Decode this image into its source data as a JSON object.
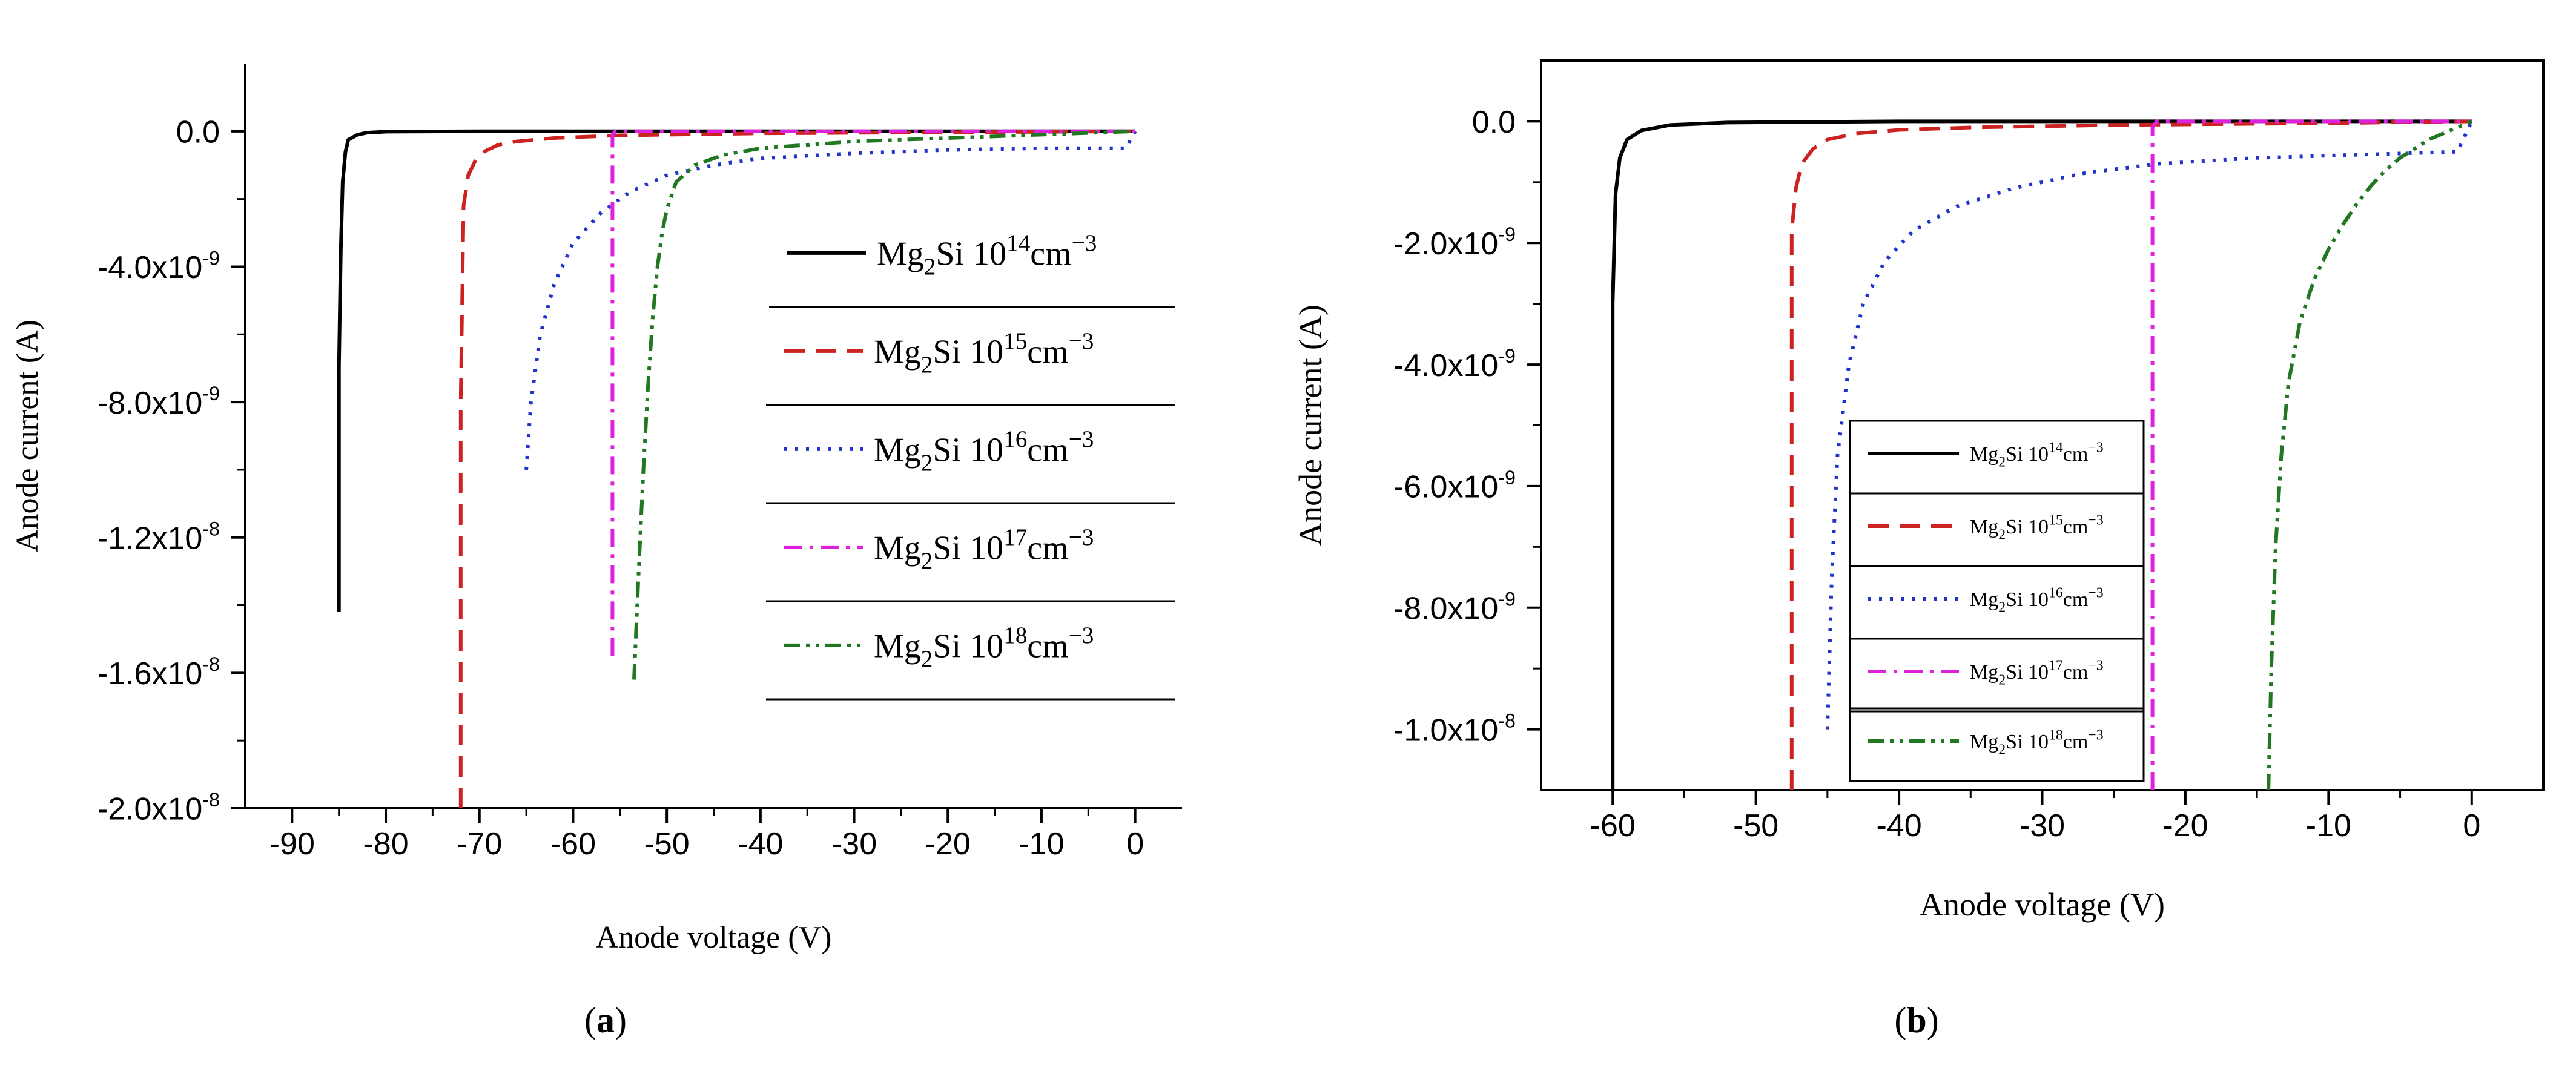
{
  "chart_data": [
    {
      "id": "a",
      "type": "line",
      "caption": "a",
      "xlabel": "Anode voltage (V)",
      "ylabel": "Anode current (A)",
      "xlim": [
        -95,
        5
      ],
      "ylim": [
        -2e-08,
        2e-09
      ],
      "xticks": [
        -90,
        -80,
        -70,
        -60,
        -50,
        -40,
        -30,
        -20,
        -10,
        0
      ],
      "xtick_labels": [
        "-90",
        "-80",
        "-70",
        "-60",
        "-50",
        "-40",
        "-30",
        "-20",
        "-10",
        "0"
      ],
      "yticks": [
        0,
        -4e-09,
        -8e-09,
        -1.2e-08,
        -1.6e-08,
        -2e-08
      ],
      "ytick_labels": [
        "0.0",
        "-4.0x10",
        "-8.0x10",
        "-1.2x10",
        "-1.6x10",
        "-2.0x10"
      ],
      "ytick_exps": [
        "",
        "-9",
        "-9",
        "-8",
        "-8",
        "-8"
      ],
      "legend_position": "right",
      "series": [
        {
          "name": "Mg2Si 10^14 cm^-3",
          "legend": {
            "base": "Mg",
            "sub": "2",
            "mid": "Si 10",
            "sup": "14",
            "unit": "cm",
            "usup": "−3"
          },
          "color": "#000000",
          "dash": "solid",
          "x": [
            -85,
            -85,
            -84.8,
            -84.6,
            -84.3,
            -84.0,
            -83.0,
            -82.0,
            -80.0,
            -70,
            -50,
            -30,
            0
          ],
          "y": [
            -1.42e-08,
            -7e-09,
            -3.5e-09,
            -1.5e-09,
            -6e-10,
            -2.5e-10,
            -1e-10,
            -4e-11,
            -1e-11,
            0,
            0,
            0,
            0
          ]
        },
        {
          "name": "Mg2Si 10^15 cm^-3",
          "legend": {
            "base": "Mg",
            "sub": "2",
            "mid": "Si 10",
            "sup": "15",
            "unit": "cm",
            "usup": "−3"
          },
          "color": "#cc2222",
          "dash": "dashed",
          "x": [
            -72,
            -72,
            -71.7,
            -71.2,
            -70.5,
            -69.5,
            -68,
            -66,
            -62,
            -55,
            -40,
            -20,
            0
          ],
          "y": [
            -2e-08,
            -8e-09,
            -2.2e-09,
            -1.3e-09,
            -9e-10,
            -6e-10,
            -4e-10,
            -3e-10,
            -2e-10,
            -1.2e-10,
            -6e-11,
            -3e-11,
            0
          ]
        },
        {
          "name": "Mg2Si 10^16 cm^-3",
          "legend": {
            "base": "Mg",
            "sub": "2",
            "mid": "Si 10",
            "sup": "16",
            "unit": "cm",
            "usup": "−3"
          },
          "color": "#2233cc",
          "dash": "dotted",
          "x": [
            -65,
            -64.5,
            -63.5,
            -62,
            -60,
            -57,
            -54,
            -50,
            -45,
            -40,
            -30,
            -20,
            -10,
            -1,
            0
          ],
          "y": [
            -1e-08,
            -8e-09,
            -6e-09,
            -4.5e-09,
            -3.3e-09,
            -2.4e-09,
            -1.8e-09,
            -1.3e-09,
            -1e-09,
            -8e-10,
            -6.5e-10,
            -5.5e-10,
            -5e-10,
            -5e-10,
            0
          ]
        },
        {
          "name": "Mg2Si 10^17 cm^-3",
          "legend": {
            "base": "Mg",
            "sub": "2",
            "mid": "Si 10",
            "sup": "17",
            "unit": "cm",
            "usup": "−3"
          },
          "color": "#dd22dd",
          "dash": "dashdot",
          "x": [
            -55.8,
            -55.8,
            -55.5,
            -40,
            -20,
            0
          ],
          "y": [
            -1.55e-08,
            -1e-10,
            0,
            0,
            0,
            0
          ]
        },
        {
          "name": "Mg2Si 10^18 cm^-3",
          "legend": {
            "base": "Mg",
            "sub": "2",
            "mid": "Si 10",
            "sup": "18",
            "unit": "cm",
            "usup": "−3"
          },
          "color": "#227722",
          "dash": "dashdotdot",
          "x": [
            -53.5,
            -53,
            -52.5,
            -52,
            -51.5,
            -51,
            -50.5,
            -50,
            -49,
            -47,
            -44,
            -40,
            -30,
            -20,
            -10,
            0
          ],
          "y": [
            -1.62e-08,
            -1.3e-08,
            -1e-08,
            -7.5e-09,
            -5.5e-09,
            -4e-09,
            -3e-09,
            -2.3e-09,
            -1.5e-09,
            -1e-09,
            -7e-10,
            -5e-10,
            -3e-10,
            -2e-10,
            -1e-10,
            0
          ]
        }
      ]
    },
    {
      "id": "b",
      "type": "line",
      "caption": "b",
      "xlabel": "Anode voltage (V)",
      "ylabel": "Anode current (A)",
      "xlim": [
        -65,
        5
      ],
      "ylim": [
        -1.1e-08,
        1e-09
      ],
      "xticks": [
        -60,
        -50,
        -40,
        -30,
        -20,
        -10,
        0
      ],
      "xtick_labels": [
        "-60",
        "-50",
        "-40",
        "-30",
        "-20",
        "-10",
        "0"
      ],
      "yticks": [
        0,
        -2e-09,
        -4e-09,
        -6e-09,
        -8e-09,
        -1e-08
      ],
      "ytick_labels": [
        "0.0",
        "-2.0x10",
        "-4.0x10",
        "-6.0x10",
        "-8.0x10",
        "-1.0x10"
      ],
      "ytick_exps": [
        "",
        "-9",
        "-9",
        "-9",
        "-9",
        "-8"
      ],
      "legend_position": "center",
      "series": [
        {
          "name": "Mg2Si 10^14 cm^-3",
          "legend": {
            "base": "Mg",
            "sub": "2",
            "mid": "Si 10",
            "sup": "14",
            "unit": "cm",
            "usup": "−3"
          },
          "color": "#000000",
          "dash": "solid",
          "x": [
            -60,
            -60,
            -59.8,
            -59.5,
            -59,
            -58,
            -56,
            -52,
            -40,
            -20,
            0
          ],
          "y": [
            -1.1e-08,
            -3e-09,
            -1.2e-09,
            -6e-10,
            -3e-10,
            -1.5e-10,
            -6e-11,
            -2e-11,
            0,
            0,
            0
          ]
        },
        {
          "name": "Mg2Si 10^15 cm^-3",
          "legend": {
            "base": "Mg",
            "sub": "2",
            "mid": "Si 10",
            "sup": "15",
            "unit": "cm",
            "usup": "−3"
          },
          "color": "#cc2222",
          "dash": "dashed",
          "x": [
            -47.5,
            -47.5,
            -47.2,
            -46.8,
            -46,
            -45,
            -43,
            -40,
            -35,
            -25,
            -10,
            0
          ],
          "y": [
            -1.1e-08,
            -1.8e-09,
            -1.1e-09,
            -7e-10,
            -4.5e-10,
            -3e-10,
            -2e-10,
            -1.4e-10,
            -1e-10,
            -6e-11,
            -3e-11,
            0
          ]
        },
        {
          "name": "Mg2Si 10^16 cm^-3",
          "legend": {
            "base": "Mg",
            "sub": "2",
            "mid": "Si 10",
            "sup": "16",
            "unit": "cm",
            "usup": "−3"
          },
          "color": "#2233cc",
          "dash": "dotted",
          "x": [
            -45,
            -44.7,
            -44.3,
            -43.5,
            -42.5,
            -41,
            -39,
            -36,
            -32,
            -27,
            -22,
            -15,
            -8,
            -1,
            0
          ],
          "y": [
            -1e-08,
            -7.5e-09,
            -5.5e-09,
            -4e-09,
            -3e-09,
            -2.3e-09,
            -1.8e-09,
            -1.4e-09,
            -1.1e-09,
            -8.5e-10,
            -7e-10,
            -6e-10,
            -5.5e-10,
            -5e-10,
            0
          ]
        },
        {
          "name": "Mg2Si 10^17 cm^-3",
          "legend": {
            "base": "Mg",
            "sub": "2",
            "mid": "Si 10",
            "sup": "17",
            "unit": "cm",
            "usup": "−3"
          },
          "color": "#dd22dd",
          "dash": "dashdot",
          "x": [
            -22.3,
            -22.3,
            -22,
            -15,
            -5,
            0
          ],
          "y": [
            -1.1e-08,
            -1e-10,
            0,
            0,
            0,
            0
          ]
        },
        {
          "name": "Mg2Si 10^18 cm^-3",
          "legend": {
            "base": "Mg",
            "sub": "2",
            "mid": "Si 10",
            "sup": "18",
            "unit": "cm",
            "usup": "−3"
          },
          "color": "#227722",
          "dash": "dashdotdot",
          "x": [
            -14.2,
            -14,
            -13.7,
            -13.3,
            -12.8,
            -12,
            -11,
            -10,
            -9,
            -8,
            -7,
            -6,
            -5,
            -4,
            -3,
            -2,
            -1,
            0
          ],
          "y": [
            -1.1e-08,
            -9e-09,
            -7e-09,
            -5.5e-09,
            -4.3e-09,
            -3.3e-09,
            -2.6e-09,
            -2.1e-09,
            -1.7e-09,
            -1.35e-09,
            -1.05e-09,
            -8e-10,
            -6e-10,
            -4.5e-10,
            -3e-10,
            -2e-10,
            -1e-10,
            0
          ]
        }
      ]
    }
  ]
}
